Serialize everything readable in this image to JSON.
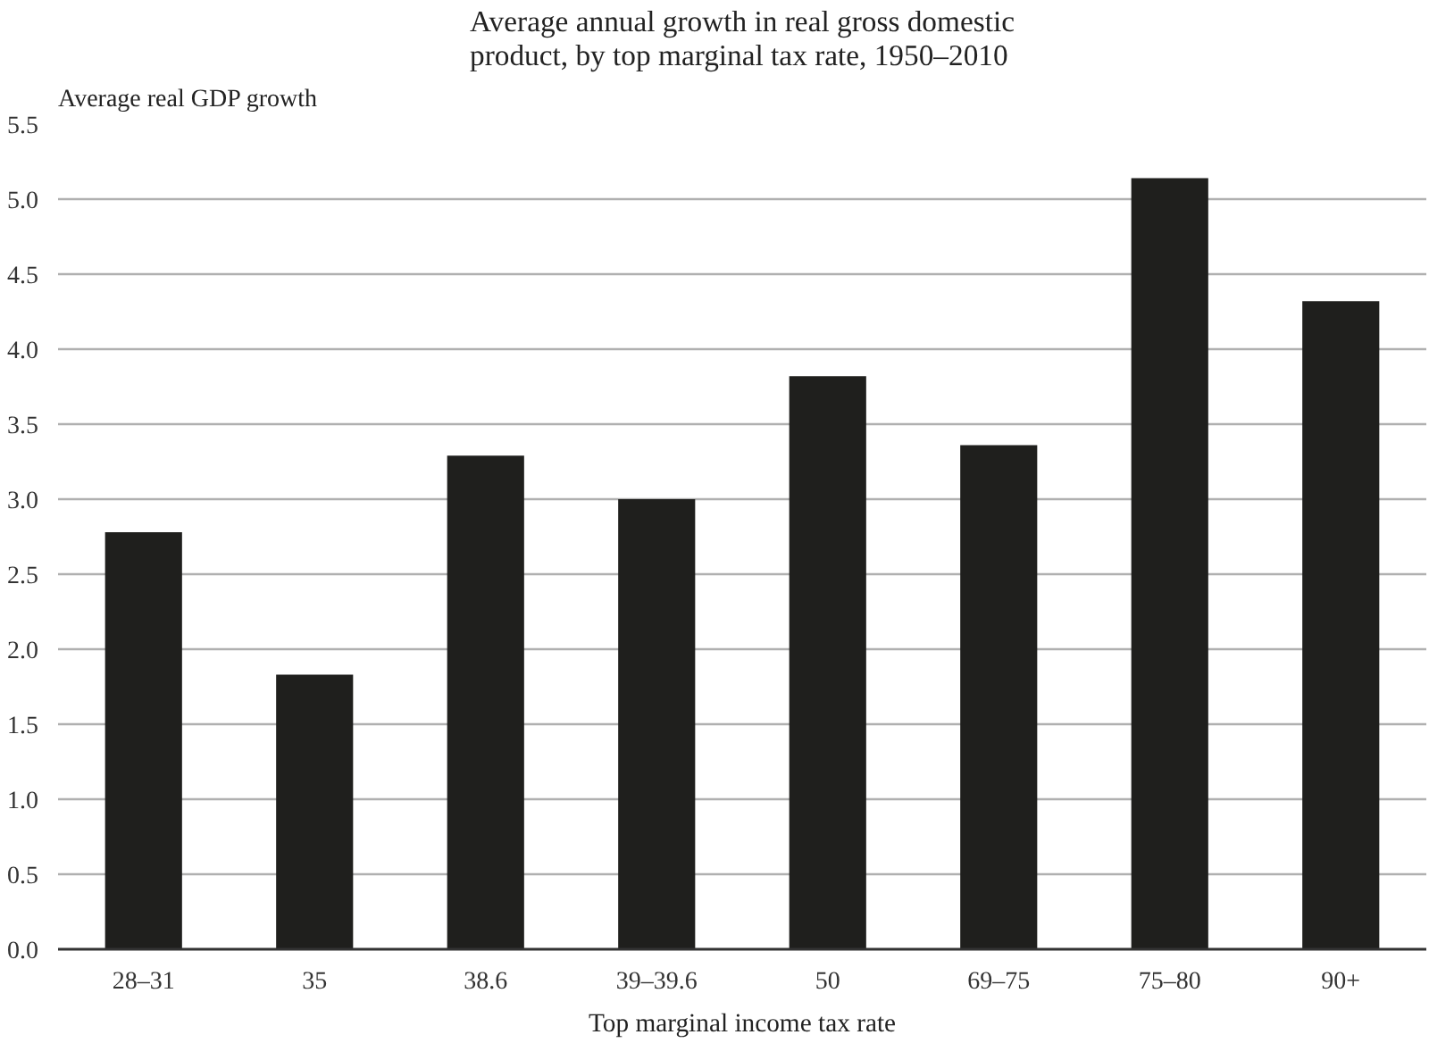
{
  "chart_data": {
    "type": "bar",
    "title": "Average annual growth in real gross domestic product, by top marginal tax rate, 1950–2010",
    "ylabel": "Average real GDP growth",
    "xlabel": "Top marginal income tax rate",
    "categories": [
      "28–31",
      "35",
      "38.6",
      "39–39.6",
      "50",
      "69–75",
      "75–80",
      "90+"
    ],
    "values": [
      2.78,
      1.83,
      3.29,
      3.0,
      3.82,
      3.36,
      5.14,
      4.32
    ],
    "color": "#1f1f1d",
    "ylim": [
      0,
      5.5
    ],
    "yticks": [
      {
        "value": 0,
        "label": "0.0"
      },
      {
        "value": 0.5,
        "label": "0.5"
      },
      {
        "value": 1,
        "label": "1.0"
      },
      {
        "value": 1.5,
        "label": "1.5"
      },
      {
        "value": 2,
        "label": "2.0"
      },
      {
        "value": 2.5,
        "label": "2.5"
      },
      {
        "value": 3,
        "label": "3.0"
      },
      {
        "value": 3.5,
        "label": "3.5"
      },
      {
        "value": 4,
        "label": "4.0"
      },
      {
        "value": 4.5,
        "label": "4.5"
      },
      {
        "value": 5,
        "label": "5.0"
      },
      {
        "value": 5.5,
        "label": "5.5"
      }
    ],
    "grid": "y"
  }
}
